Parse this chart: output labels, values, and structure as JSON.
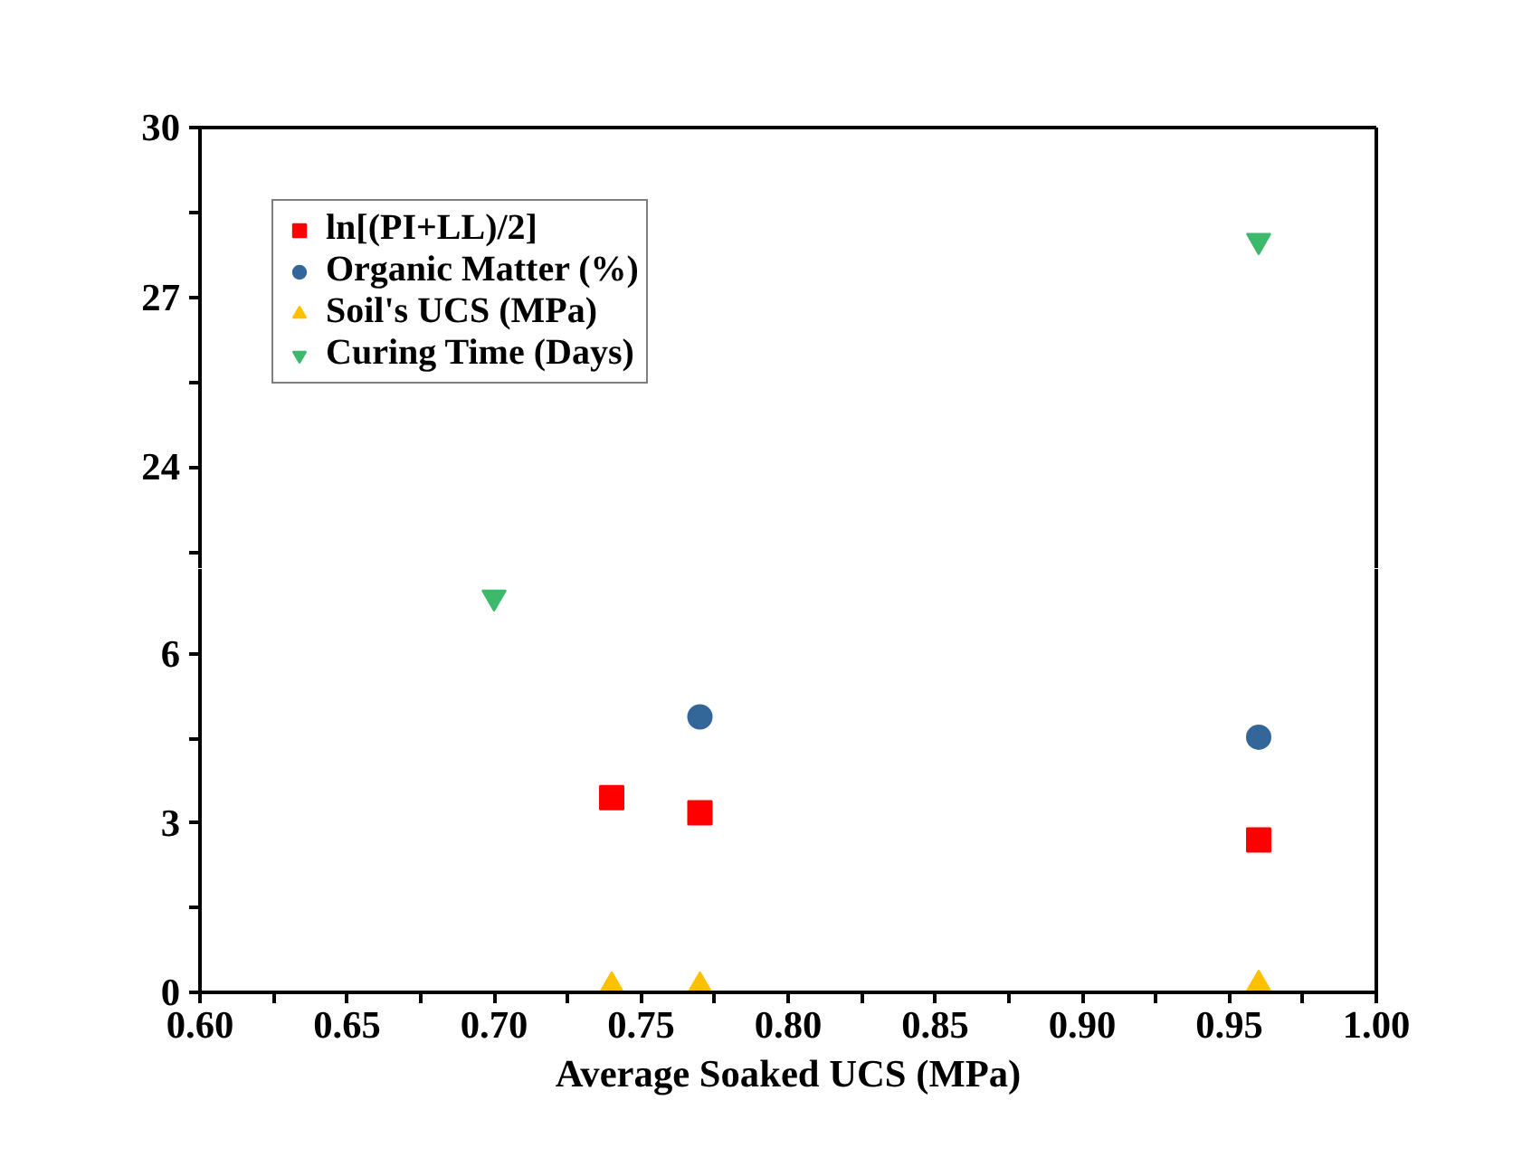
{
  "chart_data": [
    {
      "type": "scatter",
      "xlim": [
        0.6,
        1.0
      ],
      "ylim": [
        22.2,
        30
      ],
      "yticks": [
        {
          "value": 22.5,
          "label": null
        },
        24,
        {
          "value": 25.5,
          "label": null
        },
        27,
        {
          "value": 28.5,
          "label": null
        },
        30
      ],
      "tick_labels": "y",
      "legend": "top left",
      "grid": false,
      "series": [
        {
          "name": "ln[(PI+LL)/2]",
          "color": "#ff0000",
          "marker": "square"
        },
        {
          "name": "Organic Matter (%)",
          "color": "#336699",
          "marker": "circle"
        },
        {
          "name": "Soil's UCS (MPa)",
          "color": "#ffc000",
          "marker": "triangle"
        },
        {
          "name": "Curing Time (Days)",
          "color": "#3cb96a",
          "x": [
            0.96
          ],
          "values": [
            28
          ]
        }
      ]
    },
    {
      "type": "scatter",
      "xlim": [
        0.6,
        1.0
      ],
      "ylim": [
        0,
        7.5
      ],
      "xlabel": "Average Soaked UCS (MPa)",
      "xticks": [
        {
          "value": 0.6,
          "label": "0.60"
        },
        {
          "value": 0.625,
          "label": null
        },
        {
          "value": 0.65,
          "label": "0.65"
        },
        {
          "value": 0.675,
          "label": null
        },
        {
          "value": 0.7,
          "label": "0.70"
        },
        {
          "value": 0.725,
          "label": null
        },
        {
          "value": 0.75,
          "label": "0.75"
        },
        {
          "value": 0.775,
          "label": null
        },
        {
          "value": 0.8,
          "label": "0.80"
        },
        {
          "value": 0.825,
          "label": null
        },
        {
          "value": 0.85,
          "label": "0.85"
        },
        {
          "value": 0.875,
          "label": null
        },
        {
          "value": 0.9,
          "label": "0.90"
        },
        {
          "value": 0.925,
          "label": null
        },
        {
          "value": 0.95,
          "label": "0.95"
        },
        {
          "value": 0.975,
          "label": null
        },
        {
          "value": 1.0,
          "label": "1.00"
        }
      ],
      "yticks": [
        0,
        {
          "value": 1.5,
          "label": null
        },
        3,
        {
          "value": 4.5,
          "label": null
        },
        6
      ],
      "grid": false,
      "legend": false,
      "series": [
        {
          "color": "#ff0000",
          "marker": "square",
          "x": [
            0.74,
            0.77,
            0.96
          ],
          "values": [
            3.45,
            3.18,
            2.7
          ]
        },
        {
          "color": "#336699",
          "marker": "circle",
          "x": [
            0.77,
            0.96
          ],
          "values": [
            4.88,
            4.52
          ]
        },
        {
          "color": "#ffc000",
          "marker": "triangle",
          "x": [
            0.74,
            0.77,
            0.96
          ],
          "values": [
            0.12,
            0.12,
            0.15
          ]
        },
        {
          "color": "#3cb96a",
          "x": [
            0.7
          ],
          "values": [
            7.0
          ]
        }
      ]
    }
  ]
}
